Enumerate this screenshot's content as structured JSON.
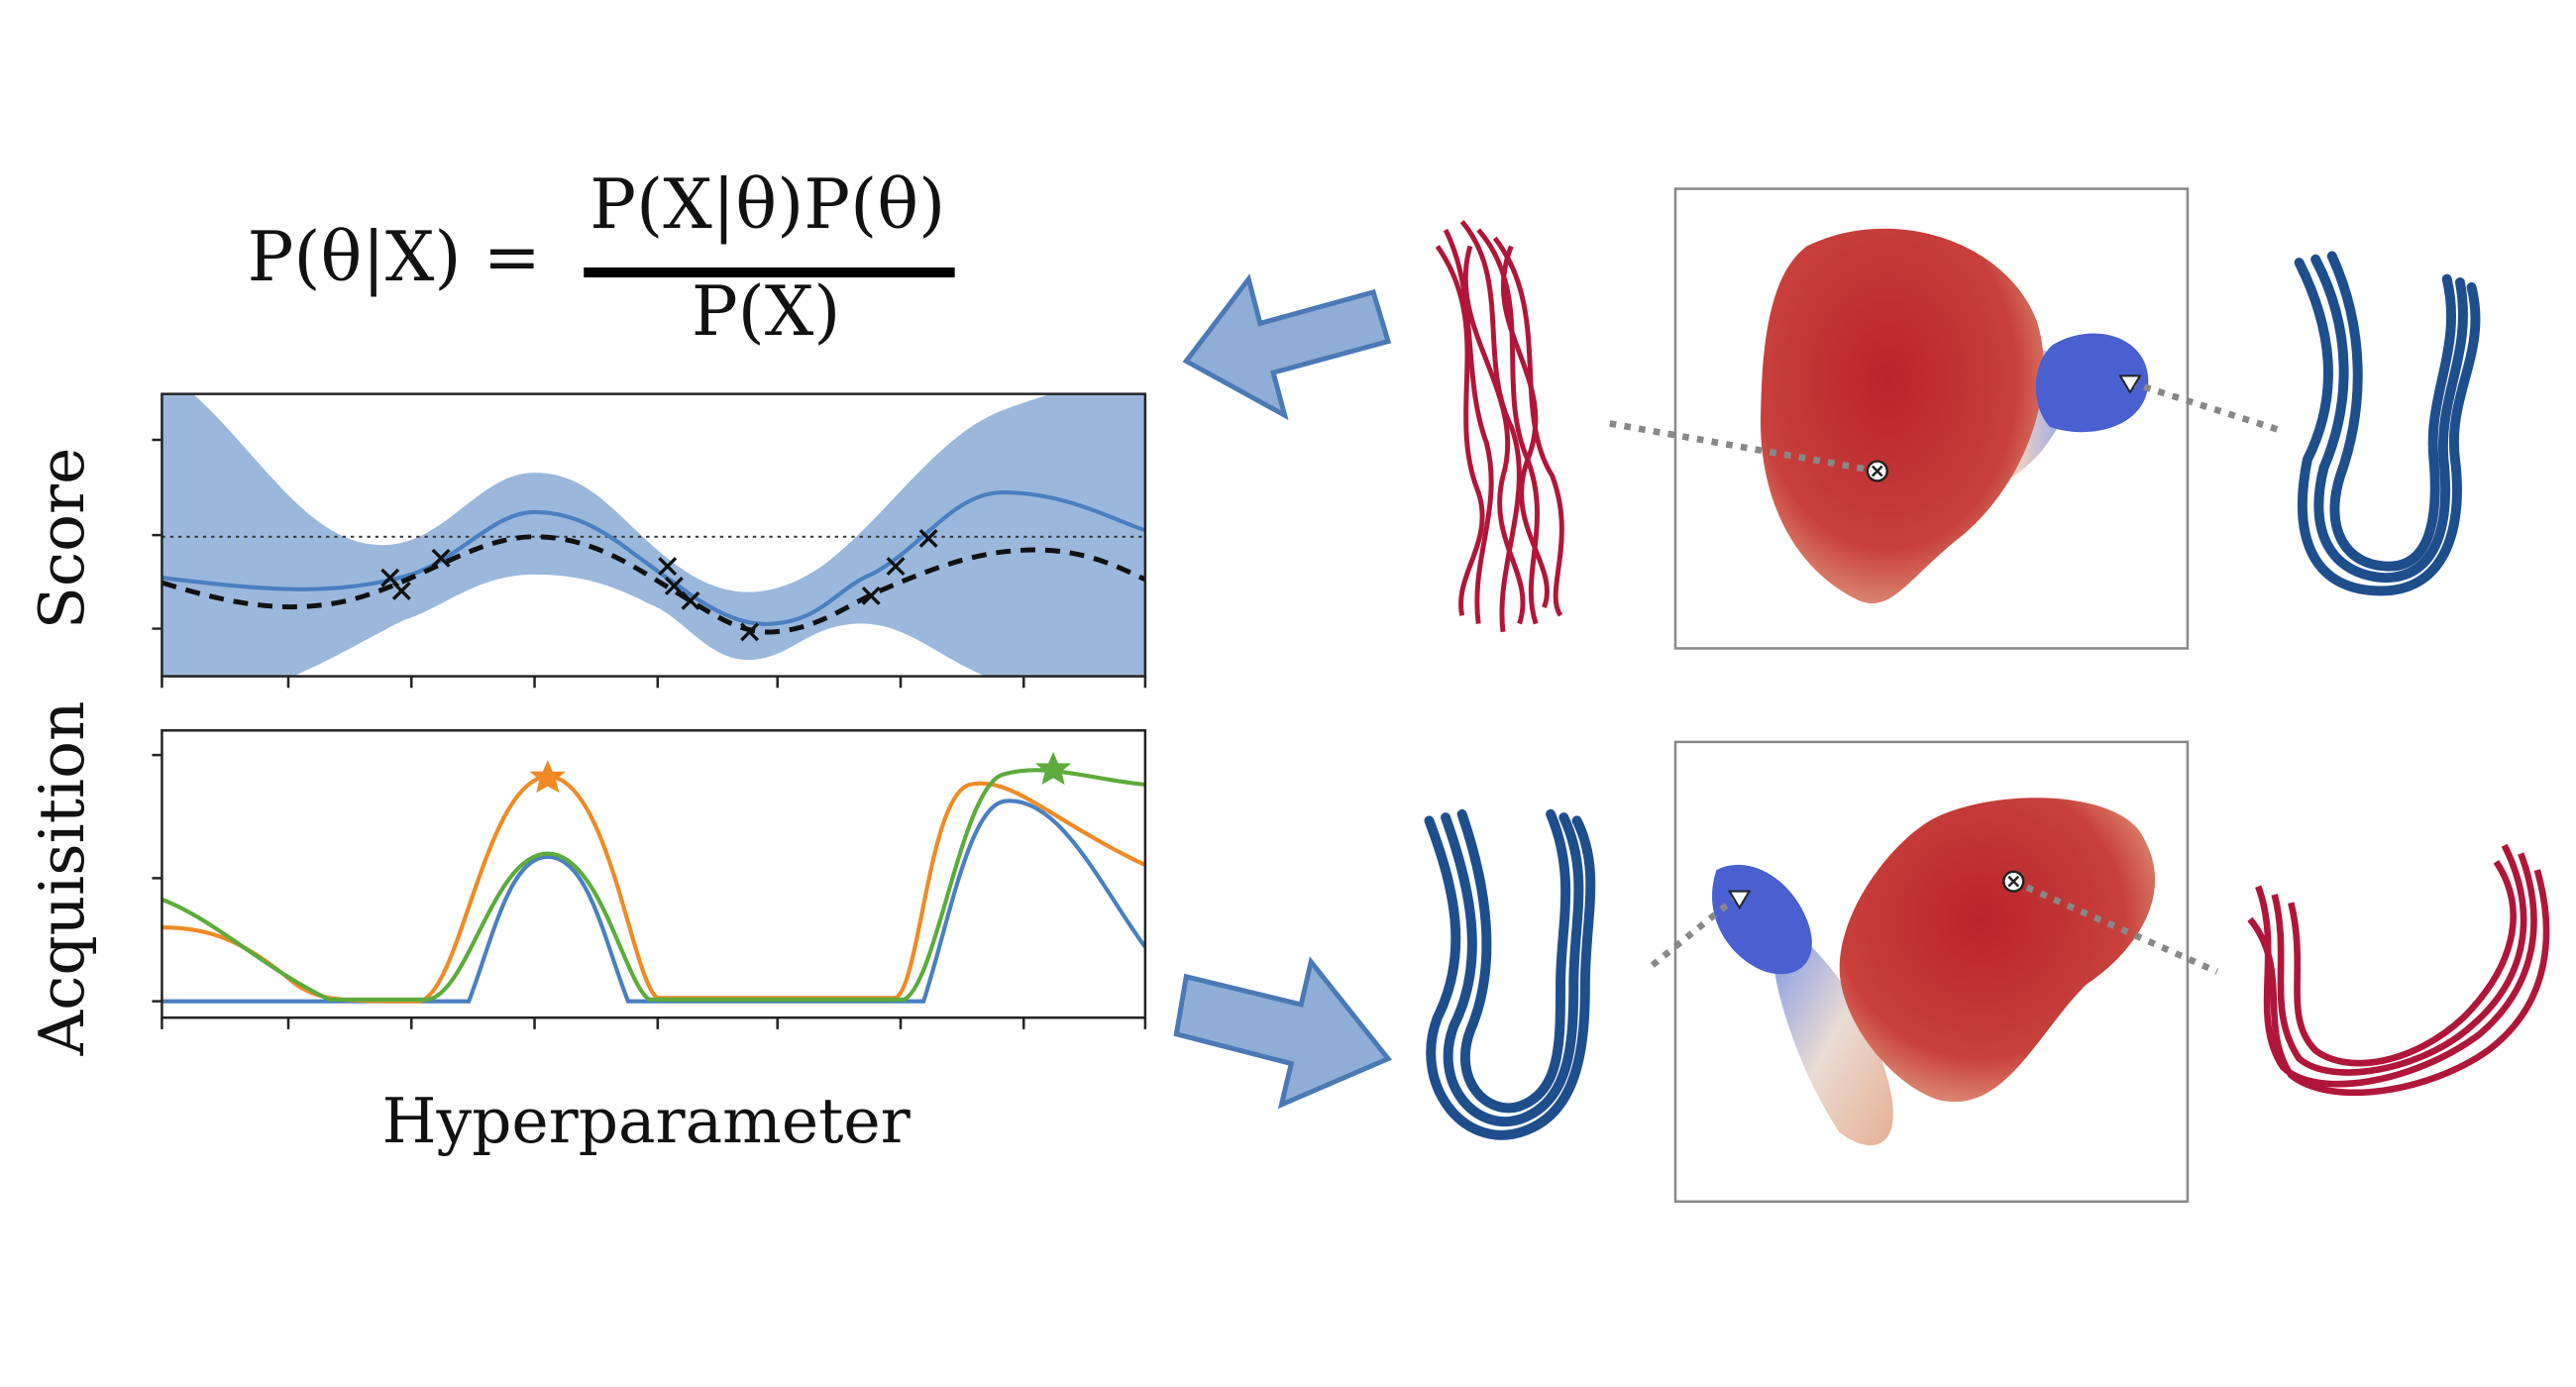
{
  "equation": {
    "lhs": "P(θ|X) =",
    "numerator": "P(X|θ)P(θ)",
    "denominator": "P(X)"
  },
  "score_plot": {
    "ylabel": "Score"
  },
  "acquisition_plot": {
    "ylabel": "Acquisition"
  },
  "xlabel": "Hyperparameter"
}
